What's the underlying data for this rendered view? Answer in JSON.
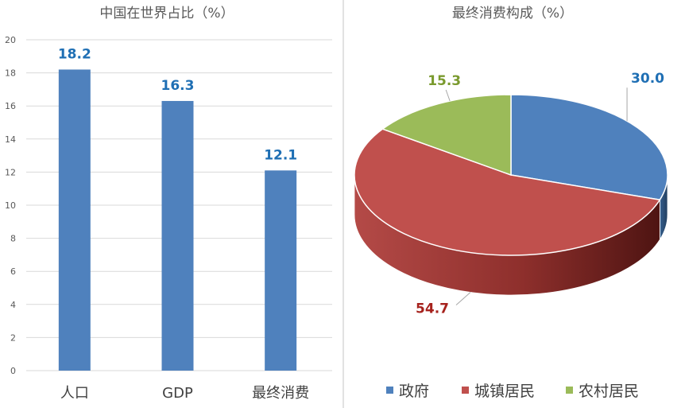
{
  "chart_data": [
    {
      "type": "bar",
      "title": "中国在世界占比（%）",
      "categories": [
        "人口",
        "GDP",
        "最终消费"
      ],
      "values": [
        18.2,
        16.3,
        12.1
      ],
      "data_labels": [
        "18.2",
        "16.3",
        "12.1"
      ],
      "yticks": [
        "0",
        "2",
        "4",
        "6",
        "8",
        "10",
        "12",
        "14",
        "16",
        "18",
        "20"
      ],
      "ylim": [
        0,
        20
      ],
      "grid": true,
      "bar_color": "#4f81bd",
      "label_color": "#1f6fb4"
    },
    {
      "type": "pie",
      "title": "最终消费构成（%）",
      "labels": [
        "政府",
        "城镇居民",
        "农村居民"
      ],
      "values": [
        30.0,
        54.7,
        15.3
      ],
      "data_labels": [
        "30.0",
        "54.7",
        "15.3"
      ],
      "colors": [
        "#4f81bd",
        "#c0504d",
        "#9bbb59"
      ],
      "label_colors": [
        "#1f6fb4",
        "#a6221d",
        "#7a9a2e"
      ],
      "legend_position": "bottom"
    }
  ]
}
